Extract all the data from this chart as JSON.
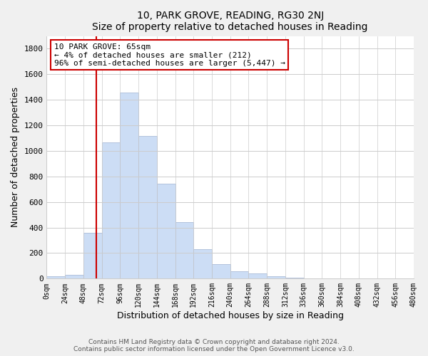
{
  "title": "10, PARK GROVE, READING, RG30 2NJ",
  "subtitle": "Size of property relative to detached houses in Reading",
  "xlabel": "Distribution of detached houses by size in Reading",
  "ylabel": "Number of detached properties",
  "bar_color": "#ccddf5",
  "bar_edge_color": "#aabbd8",
  "bin_edges": [
    0,
    24,
    48,
    72,
    96,
    120,
    144,
    168,
    192,
    216,
    240,
    264,
    288,
    312,
    336,
    360,
    384,
    408,
    432,
    456,
    480
  ],
  "bar_heights": [
    20,
    30,
    360,
    1065,
    1455,
    1115,
    745,
    440,
    230,
    115,
    58,
    40,
    20,
    5,
    2,
    1,
    0,
    0,
    0,
    0
  ],
  "tick_labels": [
    "0sqm",
    "24sqm",
    "48sqm",
    "72sqm",
    "96sqm",
    "120sqm",
    "144sqm",
    "168sqm",
    "192sqm",
    "216sqm",
    "240sqm",
    "264sqm",
    "288sqm",
    "312sqm",
    "336sqm",
    "360sqm",
    "384sqm",
    "408sqm",
    "432sqm",
    "456sqm",
    "480sqm"
  ],
  "property_line_x": 65,
  "property_line_color": "#cc0000",
  "annotation_line1": "10 PARK GROVE: 65sqm",
  "annotation_line2": "← 4% of detached houses are smaller (212)",
  "annotation_line3": "96% of semi-detached houses are larger (5,447) →",
  "ylim": [
    0,
    1900
  ],
  "yticks": [
    0,
    200,
    400,
    600,
    800,
    1000,
    1200,
    1400,
    1600,
    1800
  ],
  "footer_line1": "Contains HM Land Registry data © Crown copyright and database right 2024.",
  "footer_line2": "Contains public sector information licensed under the Open Government Licence v3.0.",
  "background_color": "#f0f0f0",
  "plot_background_color": "#ffffff",
  "grid_color": "#cccccc"
}
